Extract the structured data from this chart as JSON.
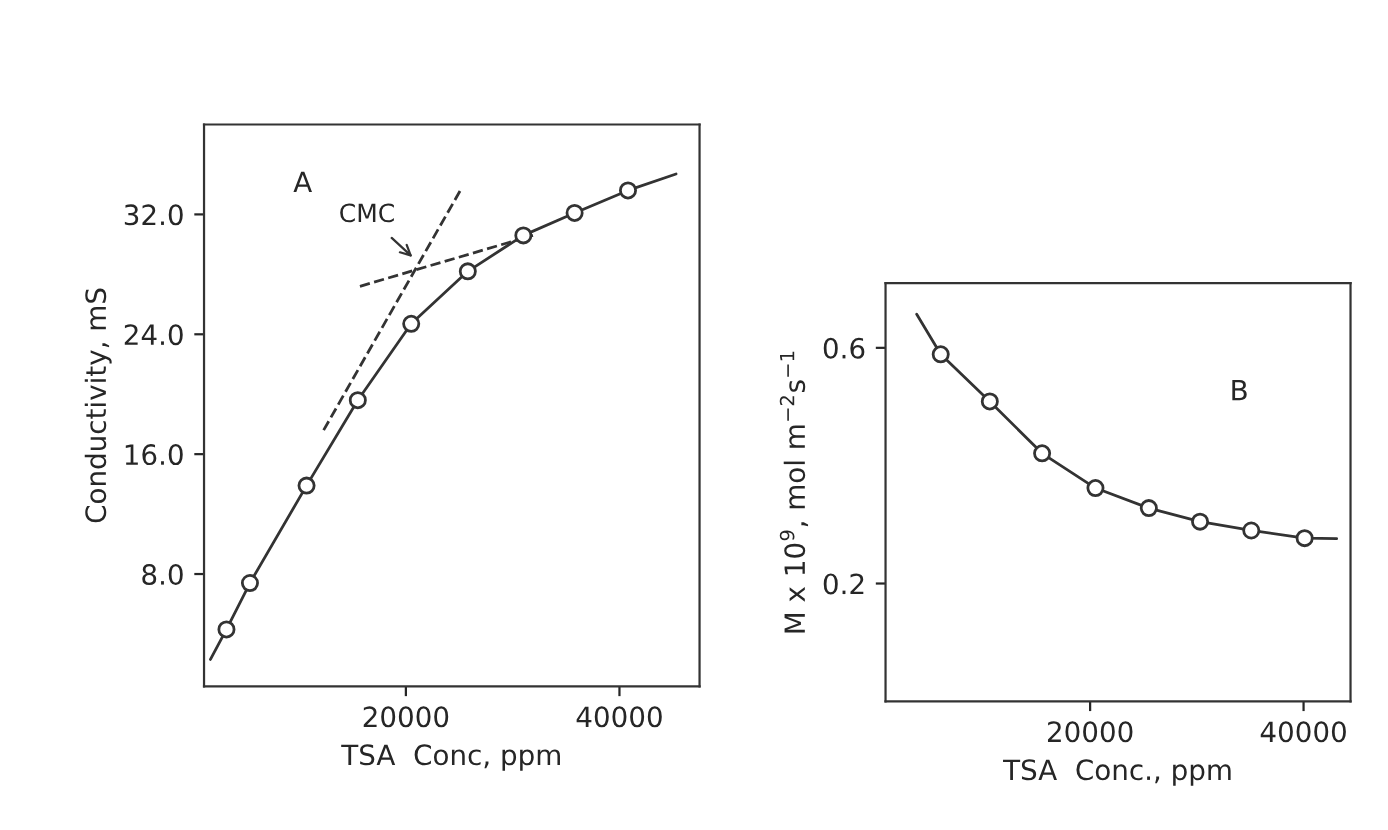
{
  "chart_data": [
    {
      "type": "scatter",
      "xlabel": "TSA  Conc, ppm",
      "ylabel": "Conductivity, mS",
      "xlim": [
        1100,
        47500
      ],
      "ylim": [
        0.5,
        38.0
      ],
      "xticks": [
        20000,
        40000
      ],
      "yticks": [
        {
          "value": 8,
          "label": "8.0"
        },
        {
          "value": 16,
          "label": "16.0"
        },
        {
          "value": 24,
          "label": "24.0"
        },
        {
          "value": 32,
          "label": "32.0"
        }
      ],
      "series": [
        {
          "type": "line",
          "color": "#333333",
          "marker": "none",
          "line_style": "solid",
          "x": [
            1700,
            3200,
            5400,
            10700,
            15500,
            20500,
            25800,
            31000,
            35800,
            40800,
            45300
          ],
          "values": [
            2.3,
            4.3,
            7.4,
            13.9,
            19.6,
            24.7,
            28.2,
            30.6,
            32.1,
            33.6,
            34.7
          ]
        },
        {
          "type": "line",
          "color": "#333333",
          "marker": "none",
          "line_style": "dashed",
          "x": [
            12300,
            25100
          ],
          "values": [
            17.6,
            33.6
          ]
        },
        {
          "type": "line",
          "color": "#333333",
          "marker": "none",
          "line_style": "dashed",
          "x": [
            15700,
            31900
          ],
          "values": [
            27.2,
            30.6
          ]
        },
        {
          "type": "scatter",
          "color": "#333333",
          "marker": "circle",
          "x": [
            3200,
            5400,
            10700,
            15500,
            20500,
            25800,
            31000,
            35800,
            40800
          ],
          "values": [
            4.3,
            7.4,
            13.9,
            19.6,
            24.7,
            28.2,
            30.6,
            32.1,
            33.6
          ]
        }
      ],
      "annotations": [
        "A",
        {
          "text": "CMC",
          "x": 21000,
          "y": 28.9
        }
      ]
    },
    {
      "type": "scatter",
      "xlabel": "TSA  Conc., ppm",
      "ylabel": "M x 10$^{9}$, mol m$^{−2}$s$^{−1}$",
      "xlim": [
        830,
        44400
      ],
      "ylim": [
        0.0,
        0.71
      ],
      "xticks": [
        20000,
        40000
      ],
      "yticks": [
        0.2,
        0.6
      ],
      "series": [
        {
          "type": "line",
          "color": "#333333",
          "marker": "none",
          "line_style": "solid",
          "x": [
            3750,
            6000,
            10600,
            15500,
            20500,
            25500,
            30300,
            35100,
            40100,
            43100
          ],
          "values": [
            0.657,
            0.589,
            0.509,
            0.421,
            0.362,
            0.328,
            0.305,
            0.29,
            0.277,
            0.276
          ]
        },
        {
          "type": "scatter",
          "color": "#333333",
          "marker": "circle",
          "x": [
            6000,
            10600,
            15500,
            20500,
            25500,
            30300,
            35100,
            40100
          ],
          "values": [
            0.589,
            0.509,
            0.421,
            0.362,
            0.328,
            0.305,
            0.29,
            0.277
          ]
        }
      ],
      "annotations": [
        "B"
      ]
    }
  ]
}
